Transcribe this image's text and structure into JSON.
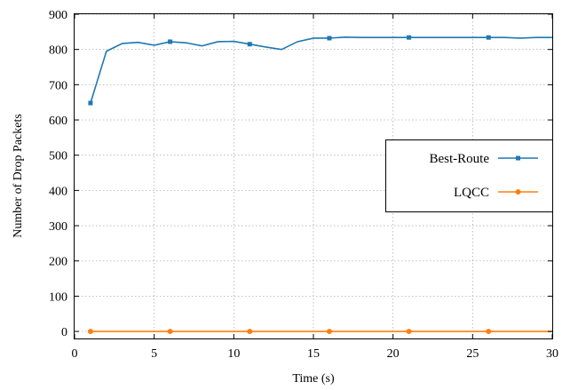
{
  "chart_data": {
    "type": "line",
    "xlabel": "Time (s)",
    "ylabel": "Number of Drop Packets",
    "xlim": [
      0,
      30
    ],
    "ylim": [
      -20,
      900
    ],
    "x_ticks": [
      0,
      5,
      10,
      15,
      20,
      25,
      30
    ],
    "y_ticks": [
      0,
      100,
      200,
      300,
      400,
      500,
      600,
      700,
      800,
      900
    ],
    "grid": true,
    "legend_position": "right-middle",
    "series": [
      {
        "name": "Best-Route",
        "color": "#1f77b4",
        "marker": "square",
        "marker_every_from_index": 0,
        "marker_step": 5,
        "x": [
          1,
          2,
          3,
          4,
          5,
          6,
          7,
          8,
          9,
          10,
          11,
          12,
          13,
          14,
          15,
          16,
          17,
          18,
          19,
          20,
          21,
          22,
          23,
          24,
          25,
          26,
          27,
          28,
          29,
          30
        ],
        "values": [
          648,
          795,
          817,
          820,
          812,
          822,
          819,
          810,
          822,
          823,
          815,
          807,
          800,
          822,
          832,
          832,
          835,
          834,
          834,
          834,
          834,
          834,
          834,
          834,
          834,
          834,
          834,
          832,
          834,
          834
        ]
      },
      {
        "name": "LQCC",
        "color": "#ff7f0e",
        "marker": "circle",
        "marker_every_from_index": 0,
        "marker_step": 5,
        "x": [
          1,
          2,
          3,
          4,
          5,
          6,
          7,
          8,
          9,
          10,
          11,
          12,
          13,
          14,
          15,
          16,
          17,
          18,
          19,
          20,
          21,
          22,
          23,
          24,
          25,
          26,
          27,
          28,
          29,
          30
        ],
        "values": [
          0,
          0,
          0,
          0,
          0,
          0,
          0,
          0,
          0,
          0,
          0,
          0,
          0,
          0,
          0,
          0,
          0,
          0,
          0,
          0,
          0,
          0,
          0,
          0,
          0,
          0,
          0,
          0,
          0,
          0
        ]
      }
    ]
  }
}
